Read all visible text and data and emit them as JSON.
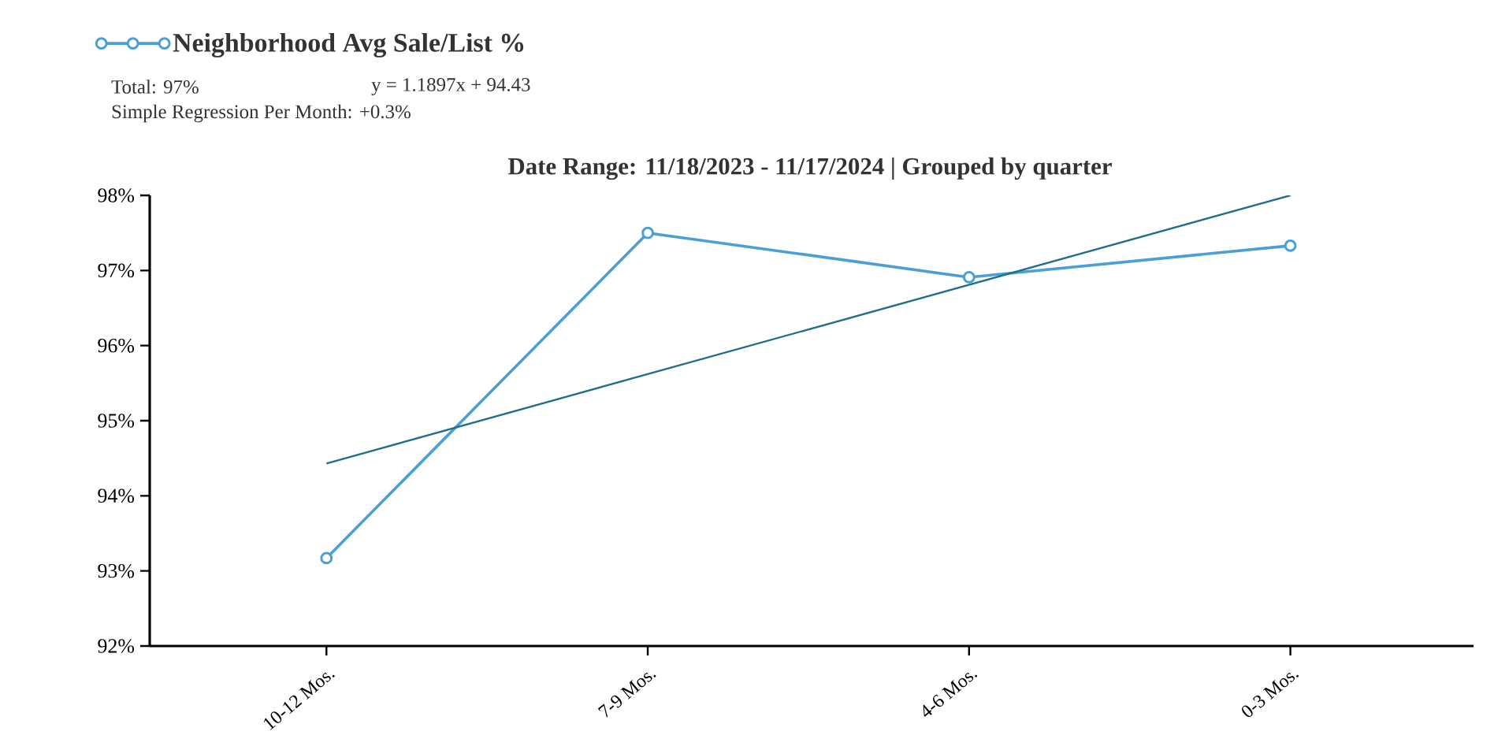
{
  "chart_data": {
    "type": "line",
    "title": "Date Range: 11/18/2023 - 11/17/2024 | Grouped by quarter",
    "annotations": [
      "Total: 97%",
      "y = 1.1897x + 94.43",
      "Simple Regression Per Month: +0.3%"
    ],
    "categories": [
      "10-12 Mos.",
      "7-9 Mos.",
      "4-6 Mos.",
      "0-3 Mos."
    ],
    "series": [
      {
        "name": "Neighborhood Avg Sale/List %",
        "color": "#4a9fd5",
        "values": [
          93.17,
          97.5,
          96.91,
          97.33
        ],
        "marker": "circle"
      },
      {
        "type": "line",
        "color": "#1f6f8b",
        "values": [
          94.43,
          95.62,
          96.81,
          98.0
        ],
        "marker": "none"
      }
    ],
    "ylim": [
      92,
      98
    ],
    "yticks": [
      {
        "value": 92,
        "label": "92%"
      },
      {
        "value": 93,
        "label": "93%"
      },
      {
        "value": 94,
        "label": "94%"
      },
      {
        "value": 95,
        "label": "95%"
      },
      {
        "value": 96,
        "label": "96%"
      },
      {
        "value": 97,
        "label": "97%"
      },
      {
        "value": 98,
        "label": "98%"
      }
    ],
    "grid": false,
    "legend": "top left"
  }
}
